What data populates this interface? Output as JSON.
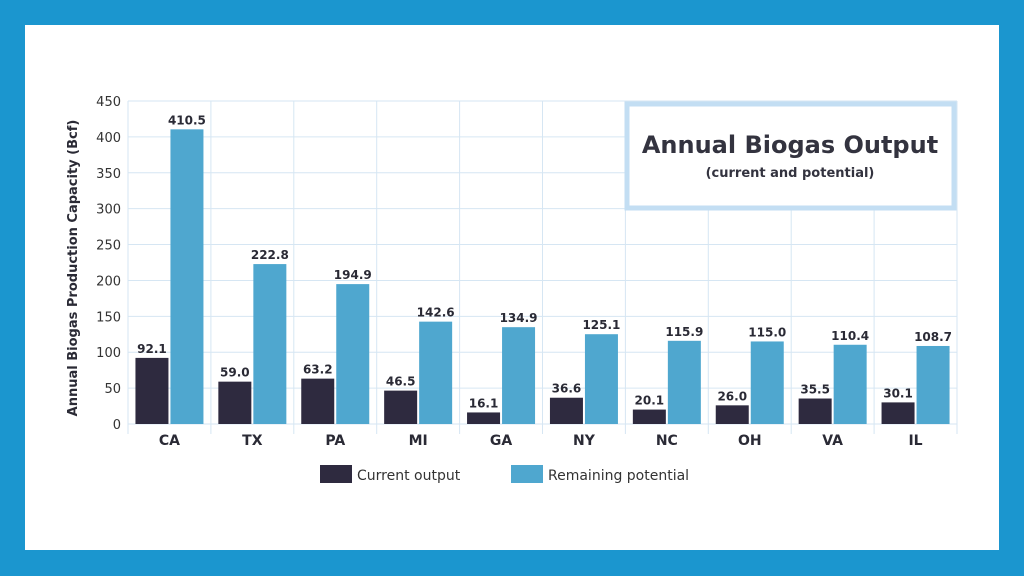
{
  "colors": {
    "frame": "#1b96cf",
    "current": "#2e2a3f",
    "remaining": "#4fa7cf",
    "grid": "#d6e6f3",
    "title_border": "#c3def3"
  },
  "chart_data": {
    "type": "bar",
    "title": "Annual Biogas Output",
    "subtitle": "(current and potential)",
    "ylabel": "Annual Biogas Production Capacity (Bcf)",
    "xlabel": "",
    "ylim": [
      0,
      450
    ],
    "yticks": [
      0,
      50,
      100,
      150,
      200,
      250,
      300,
      350,
      400,
      450
    ],
    "grid": true,
    "legend_position": "bottom",
    "categories": [
      "CA",
      "TX",
      "PA",
      "MI",
      "GA",
      "NY",
      "NC",
      "OH",
      "VA",
      "IL"
    ],
    "series": [
      {
        "name": "Current output",
        "values": [
          92.1,
          59.0,
          63.2,
          46.5,
          16.1,
          36.6,
          20.1,
          26.0,
          35.5,
          30.1
        ],
        "labels": [
          "92.1",
          "59.0",
          "63.2",
          "46.5",
          "16.1",
          "36.6",
          "20.1",
          "26.0",
          "35.5",
          "30.1"
        ]
      },
      {
        "name": "Remaining potential",
        "values": [
          410.5,
          222.8,
          194.9,
          142.6,
          134.9,
          125.1,
          115.9,
          115.0,
          110.4,
          108.7
        ],
        "labels": [
          "410.5",
          "222.8",
          "194.9",
          "142.6",
          "134.9",
          "125.1",
          "115.9",
          "115.0",
          "110.4",
          "108.7"
        ]
      }
    ]
  }
}
